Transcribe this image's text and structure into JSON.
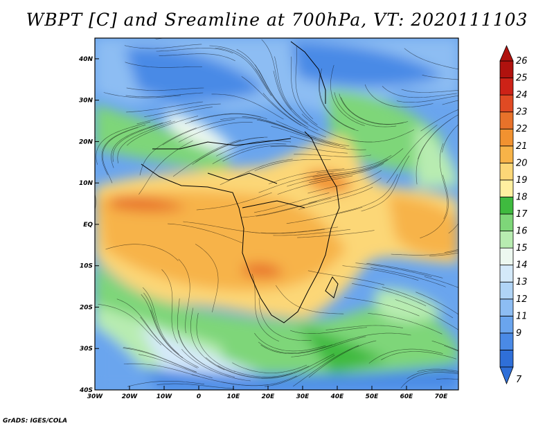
{
  "title": "WBPT [C] and Sreamline at 700hPa, VT: 2020111103",
  "credit": "GrADS: IGES/COLA",
  "map": {
    "lon_range": [
      -30,
      75
    ],
    "lat_range": [
      -40,
      45
    ],
    "lon_ticks": [
      {
        "value": -30,
        "label": "30W"
      },
      {
        "value": -20,
        "label": "20W"
      },
      {
        "value": -10,
        "label": "10W"
      },
      {
        "value": 0,
        "label": "0"
      },
      {
        "value": 10,
        "label": "10E"
      },
      {
        "value": 20,
        "label": "20E"
      },
      {
        "value": 30,
        "label": "30E"
      },
      {
        "value": 40,
        "label": "40E"
      },
      {
        "value": 50,
        "label": "50E"
      },
      {
        "value": 60,
        "label": "60E"
      },
      {
        "value": 70,
        "label": "70E"
      }
    ],
    "lat_ticks": [
      {
        "value": -40,
        "label": "40S"
      },
      {
        "value": -30,
        "label": "30S"
      },
      {
        "value": -20,
        "label": "20S"
      },
      {
        "value": -10,
        "label": "10S"
      },
      {
        "value": 0,
        "label": "EQ"
      },
      {
        "value": 10,
        "label": "10N"
      },
      {
        "value": 20,
        "label": "20N"
      },
      {
        "value": 30,
        "label": "30N"
      },
      {
        "value": 40,
        "label": "40N"
      }
    ]
  },
  "colorbar": {
    "labels": [
      "7",
      "9",
      "11",
      "12",
      "13",
      "14",
      "15",
      "16",
      "17",
      "18",
      "19",
      "20",
      "21",
      "22",
      "23",
      "24",
      "25",
      "26"
    ],
    "colors": [
      "#2f6fd8",
      "#4a8ae6",
      "#6aa5ee",
      "#8dbdf3",
      "#b0d4f6",
      "#d4e9f9",
      "#edf8f0",
      "#b8ecb1",
      "#7ed679",
      "#3fba3f",
      "#fff0a0",
      "#fcd777",
      "#f7b348",
      "#f19230",
      "#e8722a",
      "#e04a23",
      "#cd2217",
      "#b0120e"
    ]
  }
}
